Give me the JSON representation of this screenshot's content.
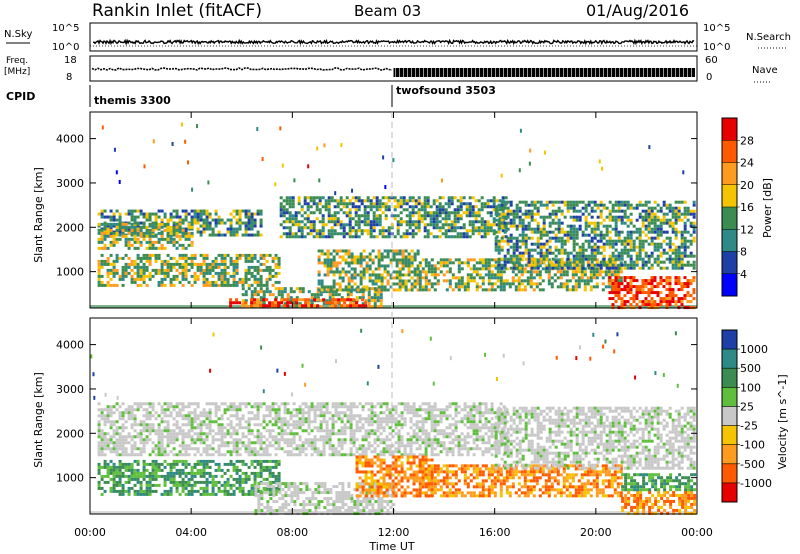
{
  "header": {
    "station": "Rankin Inlet (fitACF)",
    "beam": "Beam 03",
    "date": "01/Aug/2016"
  },
  "aux_panels": {
    "nsky_label": "N.Sky",
    "nsky_ticks": [
      "10^5",
      "10^0"
    ],
    "nsearch_label": "N.Search",
    "nsearch_ticks": [
      "10^5",
      "10^0"
    ],
    "freq_label": "Freq.",
    "freq_unit": "[MHz]",
    "freq_ticks": [
      "18",
      "8"
    ],
    "nave_label": "Nave",
    "nave_ticks": [
      "60",
      "0"
    ],
    "cpid_label": "CPID",
    "cpid_segments": [
      {
        "name": "themis 3300",
        "start_hour": 0,
        "end_hour": 12
      },
      {
        "name": "twofsound 3503",
        "start_hour": 12,
        "end_hour": 24
      }
    ]
  },
  "x_axis": {
    "label": "Time UT",
    "ticks": [
      "00:00",
      "04:00",
      "08:00",
      "12:00",
      "16:00",
      "20:00",
      "00:00"
    ]
  },
  "chart_data": [
    {
      "type": "heatmap",
      "name": "power",
      "ylabel": "Slant Range [km]",
      "xlim": [
        0,
        24
      ],
      "ylim": [
        180,
        4600
      ],
      "yticks": [
        1000,
        2000,
        3000,
        4000
      ],
      "colorbar": {
        "label": "Power [dB]",
        "tick_labels": [
          "28",
          "24",
          "20",
          "16",
          "12",
          "8",
          "4"
        ],
        "colors": [
          "#e60000",
          "#ff5a00",
          "#ff9b1e",
          "#f5c400",
          "#3c8c52",
          "#2e8a85",
          "#1e3fa5",
          "#0000ff"
        ]
      },
      "regions": [
        {
          "from_hour": 0.3,
          "to_hour": 6.8,
          "range": [
            1800,
            2400
          ],
          "level": "low-mid"
        },
        {
          "from_hour": 0.3,
          "to_hour": 4.0,
          "range": [
            1500,
            2100
          ],
          "level": "mid"
        },
        {
          "from_hour": 0.3,
          "to_hour": 7.5,
          "range": [
            700,
            1400
          ],
          "level": "mid"
        },
        {
          "from_hour": 6.0,
          "to_hour": 11.5,
          "range": [
            200,
            650
          ],
          "level": "mid"
        },
        {
          "from_hour": 5.5,
          "to_hour": 11.0,
          "range": [
            200,
            400
          ],
          "level": "high"
        },
        {
          "from_hour": 7.5,
          "to_hour": 16.5,
          "range": [
            1800,
            2700
          ],
          "level": "low-mid"
        },
        {
          "from_hour": 9.0,
          "to_hour": 13.0,
          "range": [
            600,
            1500
          ],
          "level": "mid"
        },
        {
          "from_hour": 13.0,
          "to_hour": 21.0,
          "range": [
            600,
            1300
          ],
          "level": "mid"
        },
        {
          "from_hour": 16.0,
          "to_hour": 23.9,
          "range": [
            1100,
            2600
          ],
          "level": "low-mid"
        },
        {
          "from_hour": 20.5,
          "to_hour": 23.9,
          "range": [
            200,
            900
          ],
          "level": "high"
        }
      ]
    },
    {
      "type": "heatmap",
      "name": "velocity",
      "ylabel": "Slant Range [km]",
      "xlim": [
        0,
        24
      ],
      "ylim": [
        180,
        4600
      ],
      "yticks": [
        1000,
        2000,
        3000,
        4000
      ],
      "colorbar": {
        "label": "Velocity [m s^-1]",
        "tick_labels": [
          "1000",
          "500",
          "100",
          "25",
          "-25",
          "-100",
          "-500",
          "-1000"
        ],
        "colors": [
          "#1e3fa5",
          "#2e8a85",
          "#3c8c52",
          "#5fbf3c",
          "#c8c8c8",
          "#f5c400",
          "#ff9b1e",
          "#ff5a00",
          "#e60000"
        ]
      },
      "regions": [
        {
          "from_hour": 0.3,
          "to_hour": 16.5,
          "range": [
            1500,
            2700
          ],
          "level": "near-zero"
        },
        {
          "from_hour": 0.3,
          "to_hour": 7.5,
          "range": [
            600,
            1400
          ],
          "level": "positive"
        },
        {
          "from_hour": 6.5,
          "to_hour": 12.0,
          "range": [
            200,
            900
          ],
          "level": "near-zero"
        },
        {
          "from_hour": 10.5,
          "to_hour": 13.5,
          "range": [
            600,
            1500
          ],
          "level": "negative"
        },
        {
          "from_hour": 13.0,
          "to_hour": 21.0,
          "range": [
            600,
            1300
          ],
          "level": "negative"
        },
        {
          "from_hour": 16.0,
          "to_hour": 23.9,
          "range": [
            1200,
            2600
          ],
          "level": "near-zero"
        },
        {
          "from_hour": 21.0,
          "to_hour": 23.9,
          "range": [
            200,
            700
          ],
          "level": "negative"
        },
        {
          "from_hour": 21.0,
          "to_hour": 23.9,
          "range": [
            700,
            1100
          ],
          "level": "positive"
        }
      ]
    }
  ]
}
